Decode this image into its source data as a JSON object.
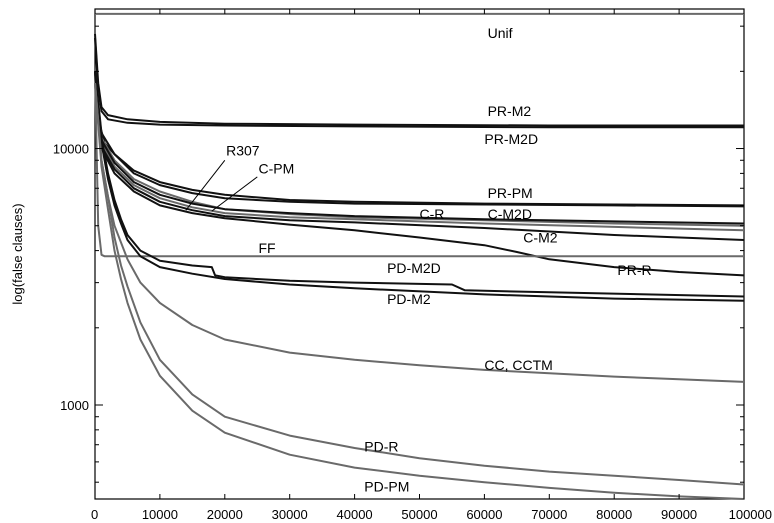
{
  "chart_data": {
    "type": "line",
    "title": "",
    "xlabel": "",
    "ylabel": "log(false clauses)",
    "xlim": [
      0,
      100000
    ],
    "ylim": [
      430,
      35000
    ],
    "yscale": "log",
    "grid": false,
    "x_ticks": [
      0,
      10000,
      20000,
      30000,
      40000,
      50000,
      60000,
      70000,
      80000,
      90000,
      100000
    ],
    "y_tick_labels": [
      {
        "value": 1000,
        "label": "1000"
      },
      {
        "value": 10000,
        "label": "10000"
      }
    ],
    "colors": {
      "dark": "#111111",
      "gray": "#6a6a6a",
      "axis": "#000000"
    },
    "series": [
      {
        "name": "Unif",
        "color": "gray",
        "points": [
          [
            0,
            33500
          ],
          [
            100000,
            33500
          ]
        ]
      },
      {
        "name": "PR-M2",
        "color": "dark",
        "points": [
          [
            0,
            28000
          ],
          [
            500,
            18000
          ],
          [
            1000,
            14500
          ],
          [
            2000,
            13500
          ],
          [
            5000,
            13000
          ],
          [
            10000,
            12700
          ],
          [
            20000,
            12500
          ],
          [
            40000,
            12400
          ],
          [
            70000,
            12300
          ],
          [
            100000,
            12300
          ]
        ]
      },
      {
        "name": "PR-M2D",
        "color": "dark",
        "points": [
          [
            0,
            27000
          ],
          [
            500,
            17000
          ],
          [
            1000,
            14000
          ],
          [
            2000,
            13000
          ],
          [
            5000,
            12600
          ],
          [
            10000,
            12400
          ],
          [
            20000,
            12300
          ],
          [
            40000,
            12200
          ],
          [
            70000,
            12100
          ],
          [
            100000,
            12100
          ]
        ]
      },
      {
        "name": "PR-PM",
        "color": "dark",
        "points": [
          [
            0,
            20000
          ],
          [
            500,
            13000
          ],
          [
            1500,
            10500
          ],
          [
            3000,
            9500
          ],
          [
            6000,
            8200
          ],
          [
            10000,
            7400
          ],
          [
            15000,
            6900
          ],
          [
            20000,
            6600
          ],
          [
            30000,
            6300
          ],
          [
            40000,
            6200
          ],
          [
            60000,
            6100
          ],
          [
            80000,
            6050
          ],
          [
            100000,
            6000
          ]
        ]
      },
      {
        "name": "R307",
        "color": "dark",
        "points": [
          [
            0,
            20000
          ],
          [
            1000,
            11500
          ],
          [
            3000,
            9500
          ],
          [
            6000,
            8000
          ],
          [
            10000,
            7200
          ],
          [
            15000,
            6700
          ],
          [
            20000,
            6400
          ],
          [
            30000,
            6200
          ],
          [
            40000,
            6100
          ],
          [
            60000,
            6050
          ],
          [
            80000,
            6000
          ],
          [
            100000,
            5950
          ]
        ]
      },
      {
        "name": "C-PM",
        "color": "gray",
        "points": [
          [
            0,
            20000
          ],
          [
            1000,
            11000
          ],
          [
            3000,
            9000
          ],
          [
            6000,
            7600
          ],
          [
            10000,
            6800
          ],
          [
            15000,
            6200
          ],
          [
            20000,
            5800
          ],
          [
            30000,
            5550
          ],
          [
            40000,
            5400
          ],
          [
            60000,
            5250
          ],
          [
            80000,
            5100
          ],
          [
            100000,
            5000
          ]
        ]
      },
      {
        "name": "C-R",
        "color": "gray",
        "points": [
          [
            0,
            20000
          ],
          [
            1000,
            10500
          ],
          [
            3000,
            8500
          ],
          [
            6000,
            7200
          ],
          [
            10000,
            6400
          ],
          [
            15000,
            5900
          ],
          [
            20000,
            5600
          ],
          [
            30000,
            5400
          ],
          [
            40000,
            5300
          ],
          [
            60000,
            5100
          ],
          [
            80000,
            4950
          ],
          [
            100000,
            4800
          ]
        ]
      },
      {
        "name": "C-M2D",
        "color": "dark",
        "points": [
          [
            0,
            20000
          ],
          [
            1000,
            10800
          ],
          [
            3000,
            8800
          ],
          [
            6000,
            7400
          ],
          [
            10000,
            6600
          ],
          [
            15000,
            6100
          ],
          [
            20000,
            5800
          ],
          [
            30000,
            5600
          ],
          [
            40000,
            5450
          ],
          [
            60000,
            5300
          ],
          [
            80000,
            5200
          ],
          [
            100000,
            5100
          ]
        ]
      },
      {
        "name": "C-M2",
        "color": "dark",
        "points": [
          [
            0,
            20000
          ],
          [
            1000,
            10200
          ],
          [
            3000,
            8300
          ],
          [
            6000,
            7000
          ],
          [
            10000,
            6200
          ],
          [
            15000,
            5750
          ],
          [
            20000,
            5450
          ],
          [
            30000,
            5250
          ],
          [
            40000,
            5150
          ],
          [
            60000,
            4900
          ],
          [
            80000,
            4600
          ],
          [
            100000,
            4400
          ]
        ]
      },
      {
        "name": "PR-R",
        "color": "dark",
        "points": [
          [
            0,
            20000
          ],
          [
            1000,
            10000
          ],
          [
            3000,
            8000
          ],
          [
            6000,
            6800
          ],
          [
            10000,
            6000
          ],
          [
            15000,
            5600
          ],
          [
            20000,
            5350
          ],
          [
            30000,
            5050
          ],
          [
            40000,
            4800
          ],
          [
            50000,
            4500
          ],
          [
            60000,
            4200
          ],
          [
            65000,
            3950
          ],
          [
            70000,
            3700
          ],
          [
            80000,
            3450
          ],
          [
            90000,
            3300
          ],
          [
            100000,
            3200
          ]
        ]
      },
      {
        "name": "FF",
        "color": "gray",
        "points": [
          [
            0,
            20000
          ],
          [
            500,
            5000
          ],
          [
            1000,
            3850
          ],
          [
            1500,
            3800
          ],
          [
            100000,
            3800
          ]
        ]
      },
      {
        "name": "PD-M2D",
        "color": "dark",
        "points": [
          [
            0,
            20000
          ],
          [
            1000,
            11000
          ],
          [
            2000,
            8000
          ],
          [
            3000,
            6300
          ],
          [
            4000,
            5300
          ],
          [
            5000,
            4600
          ],
          [
            7000,
            4000
          ],
          [
            10000,
            3650
          ],
          [
            15000,
            3500
          ],
          [
            18000,
            3450
          ],
          [
            18500,
            3200
          ],
          [
            20000,
            3150
          ],
          [
            30000,
            3050
          ],
          [
            40000,
            3000
          ],
          [
            55000,
            2950
          ],
          [
            57000,
            2800
          ],
          [
            70000,
            2750
          ],
          [
            85000,
            2700
          ],
          [
            100000,
            2650
          ]
        ]
      },
      {
        "name": "PD-M2",
        "color": "dark",
        "points": [
          [
            0,
            20000
          ],
          [
            1000,
            10500
          ],
          [
            2000,
            7600
          ],
          [
            3000,
            6000
          ],
          [
            4000,
            5100
          ],
          [
            5000,
            4400
          ],
          [
            7000,
            3800
          ],
          [
            10000,
            3450
          ],
          [
            15000,
            3250
          ],
          [
            20000,
            3100
          ],
          [
            30000,
            2950
          ],
          [
            40000,
            2850
          ],
          [
            60000,
            2700
          ],
          [
            80000,
            2600
          ],
          [
            100000,
            2550
          ]
        ]
      },
      {
        "name": "CC, CCTM",
        "color": "gray",
        "points": [
          [
            0,
            18000
          ],
          [
            1000,
            9000
          ],
          [
            2000,
            6500
          ],
          [
            3000,
            5000
          ],
          [
            5000,
            3700
          ],
          [
            7000,
            3000
          ],
          [
            10000,
            2500
          ],
          [
            15000,
            2050
          ],
          [
            20000,
            1800
          ],
          [
            30000,
            1600
          ],
          [
            40000,
            1500
          ],
          [
            50000,
            1430
          ],
          [
            60000,
            1370
          ],
          [
            70000,
            1330
          ],
          [
            80000,
            1290
          ],
          [
            90000,
            1260
          ],
          [
            100000,
            1230
          ]
        ]
      },
      {
        "name": "PD-R",
        "color": "gray",
        "points": [
          [
            0,
            18000
          ],
          [
            1000,
            9000
          ],
          [
            2000,
            6500
          ],
          [
            3000,
            4500
          ],
          [
            4000,
            3500
          ],
          [
            5000,
            2900
          ],
          [
            7000,
            2100
          ],
          [
            10000,
            1500
          ],
          [
            15000,
            1100
          ],
          [
            20000,
            900
          ],
          [
            30000,
            760
          ],
          [
            40000,
            680
          ],
          [
            50000,
            620
          ],
          [
            60000,
            580
          ],
          [
            70000,
            550
          ],
          [
            80000,
            530
          ],
          [
            90000,
            510
          ],
          [
            100000,
            490
          ]
        ]
      },
      {
        "name": "PD-PM",
        "color": "gray",
        "points": [
          [
            0,
            18000
          ],
          [
            1000,
            8500
          ],
          [
            2000,
            5800
          ],
          [
            3000,
            4000
          ],
          [
            4000,
            3100
          ],
          [
            5000,
            2500
          ],
          [
            7000,
            1800
          ],
          [
            10000,
            1300
          ],
          [
            15000,
            950
          ],
          [
            20000,
            780
          ],
          [
            30000,
            640
          ],
          [
            40000,
            570
          ],
          [
            50000,
            530
          ],
          [
            60000,
            500
          ],
          [
            70000,
            475
          ],
          [
            80000,
            455
          ],
          [
            90000,
            440
          ],
          [
            100000,
            430
          ]
        ]
      }
    ],
    "labels": [
      {
        "text": "Unif",
        "x": 60500,
        "y": 27000,
        "anchor": "start"
      },
      {
        "text": "PR-M2",
        "x": 60500,
        "y": 13400,
        "anchor": "start"
      },
      {
        "text": "PR-M2D",
        "x": 60000,
        "y": 10400,
        "anchor": "start"
      },
      {
        "text": "R307",
        "x": 20200,
        "y": 9400,
        "anchor": "start"
      },
      {
        "text": "C-PM",
        "x": 25200,
        "y": 8000,
        "anchor": "start"
      },
      {
        "text": "PR-PM",
        "x": 60500,
        "y": 6400,
        "anchor": "start"
      },
      {
        "text": "C-R",
        "x": 50000,
        "y": 5300,
        "anchor": "start"
      },
      {
        "text": "C-M2D",
        "x": 60500,
        "y": 5300,
        "anchor": "start"
      },
      {
        "text": "C-M2",
        "x": 66000,
        "y": 4300,
        "anchor": "start"
      },
      {
        "text": "FF",
        "x": 25200,
        "y": 3920,
        "anchor": "start"
      },
      {
        "text": "PD-M2D",
        "x": 45000,
        "y": 3270,
        "anchor": "start"
      },
      {
        "text": "PR-R",
        "x": 80500,
        "y": 3220,
        "anchor": "start"
      },
      {
        "text": "PD-M2",
        "x": 45000,
        "y": 2480,
        "anchor": "start"
      },
      {
        "text": "CC, CCTM",
        "x": 60000,
        "y": 1370,
        "anchor": "start"
      },
      {
        "text": "PD-R",
        "x": 41500,
        "y": 660,
        "anchor": "start"
      },
      {
        "text": "PD-PM",
        "x": 41500,
        "y": 460,
        "anchor": "start"
      }
    ],
    "callouts": [
      {
        "label": "R307",
        "from": [
          20000,
          9000
        ],
        "to": [
          14000,
          5750
        ]
      },
      {
        "label": "C-PM",
        "from": [
          25000,
          7750
        ],
        "to": [
          18000,
          5700
        ]
      }
    ]
  }
}
